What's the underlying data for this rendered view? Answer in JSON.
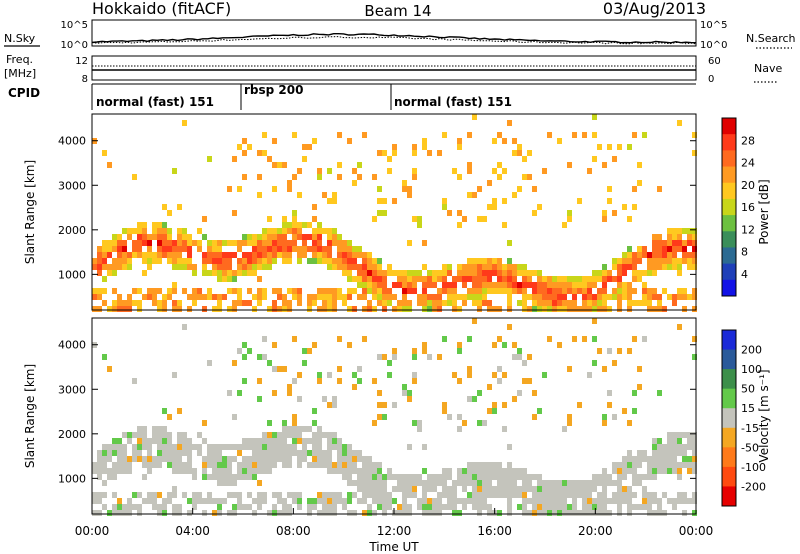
{
  "header": {
    "station": "Hokkaido (fitACF)",
    "beam": "Beam 14",
    "date": "03/Aug/2013"
  },
  "aux_panels": {
    "nsky_label": "N.Sky",
    "nsearch_label": "N.Search",
    "nsky_ticks": [
      "10^5",
      "10^0"
    ],
    "nsearch_ticks": [
      "10^5",
      "10^0"
    ],
    "freq_label_1": "Freq.",
    "freq_label_2": "[MHz]",
    "freq_ticks": [
      "12",
      "8"
    ],
    "nave_label": "Nave",
    "nave_ticks": [
      "60",
      "0"
    ],
    "cpid_label": "CPID",
    "cpid_segments": [
      {
        "label": "normal (fast) 151",
        "start_hour": 0
      },
      {
        "label": "rbsp 200",
        "start_hour": 6
      },
      {
        "label": "normal (fast) 151",
        "start_hour": 12
      }
    ]
  },
  "time_axis": {
    "label": "Time UT",
    "ticks": [
      "00:00",
      "04:00",
      "08:00",
      "12:00",
      "16:00",
      "20:00",
      "00:00"
    ],
    "range_hours": [
      0,
      24
    ]
  },
  "chart_data": [
    {
      "type": "heatmap",
      "quantity": "Power",
      "ylabel": "Slant Range [km]",
      "yticks": [
        1000,
        2000,
        3000,
        4000
      ],
      "ylim": [
        200,
        4600
      ],
      "xlim_hours": [
        0,
        24
      ],
      "colorbar": {
        "label": "Power [dB]",
        "ticks": [
          "28",
          "24",
          "20",
          "16",
          "12",
          "8",
          "4"
        ],
        "colors": [
          "#e00000",
          "#ff3a1a",
          "#ff6a1f",
          "#ff9a22",
          "#ffc820",
          "#c8d61a",
          "#6cc040",
          "#3a8e5a",
          "#2b6a92",
          "#1e3fb8",
          "#1212e6"
        ]
      }
    },
    {
      "type": "heatmap",
      "quantity": "Velocity",
      "ylabel": "Slant Range [km]",
      "yticks": [
        1000,
        2000,
        3000,
        4000
      ],
      "ylim": [
        200,
        4600
      ],
      "xlim_hours": [
        0,
        24
      ],
      "colorbar": {
        "label": "Velocity [m s⁻¹]",
        "ticks": [
          "200",
          "100",
          "50",
          "15",
          "-15",
          "-50",
          "-100",
          "-200"
        ],
        "colors": [
          "#1a2ad8",
          "#2a5a9a",
          "#3c8f4a",
          "#63c94a",
          "#c4c4bc",
          "#f4a722",
          "#ff7a1a",
          "#ff4a10",
          "#e60000"
        ]
      }
    }
  ]
}
